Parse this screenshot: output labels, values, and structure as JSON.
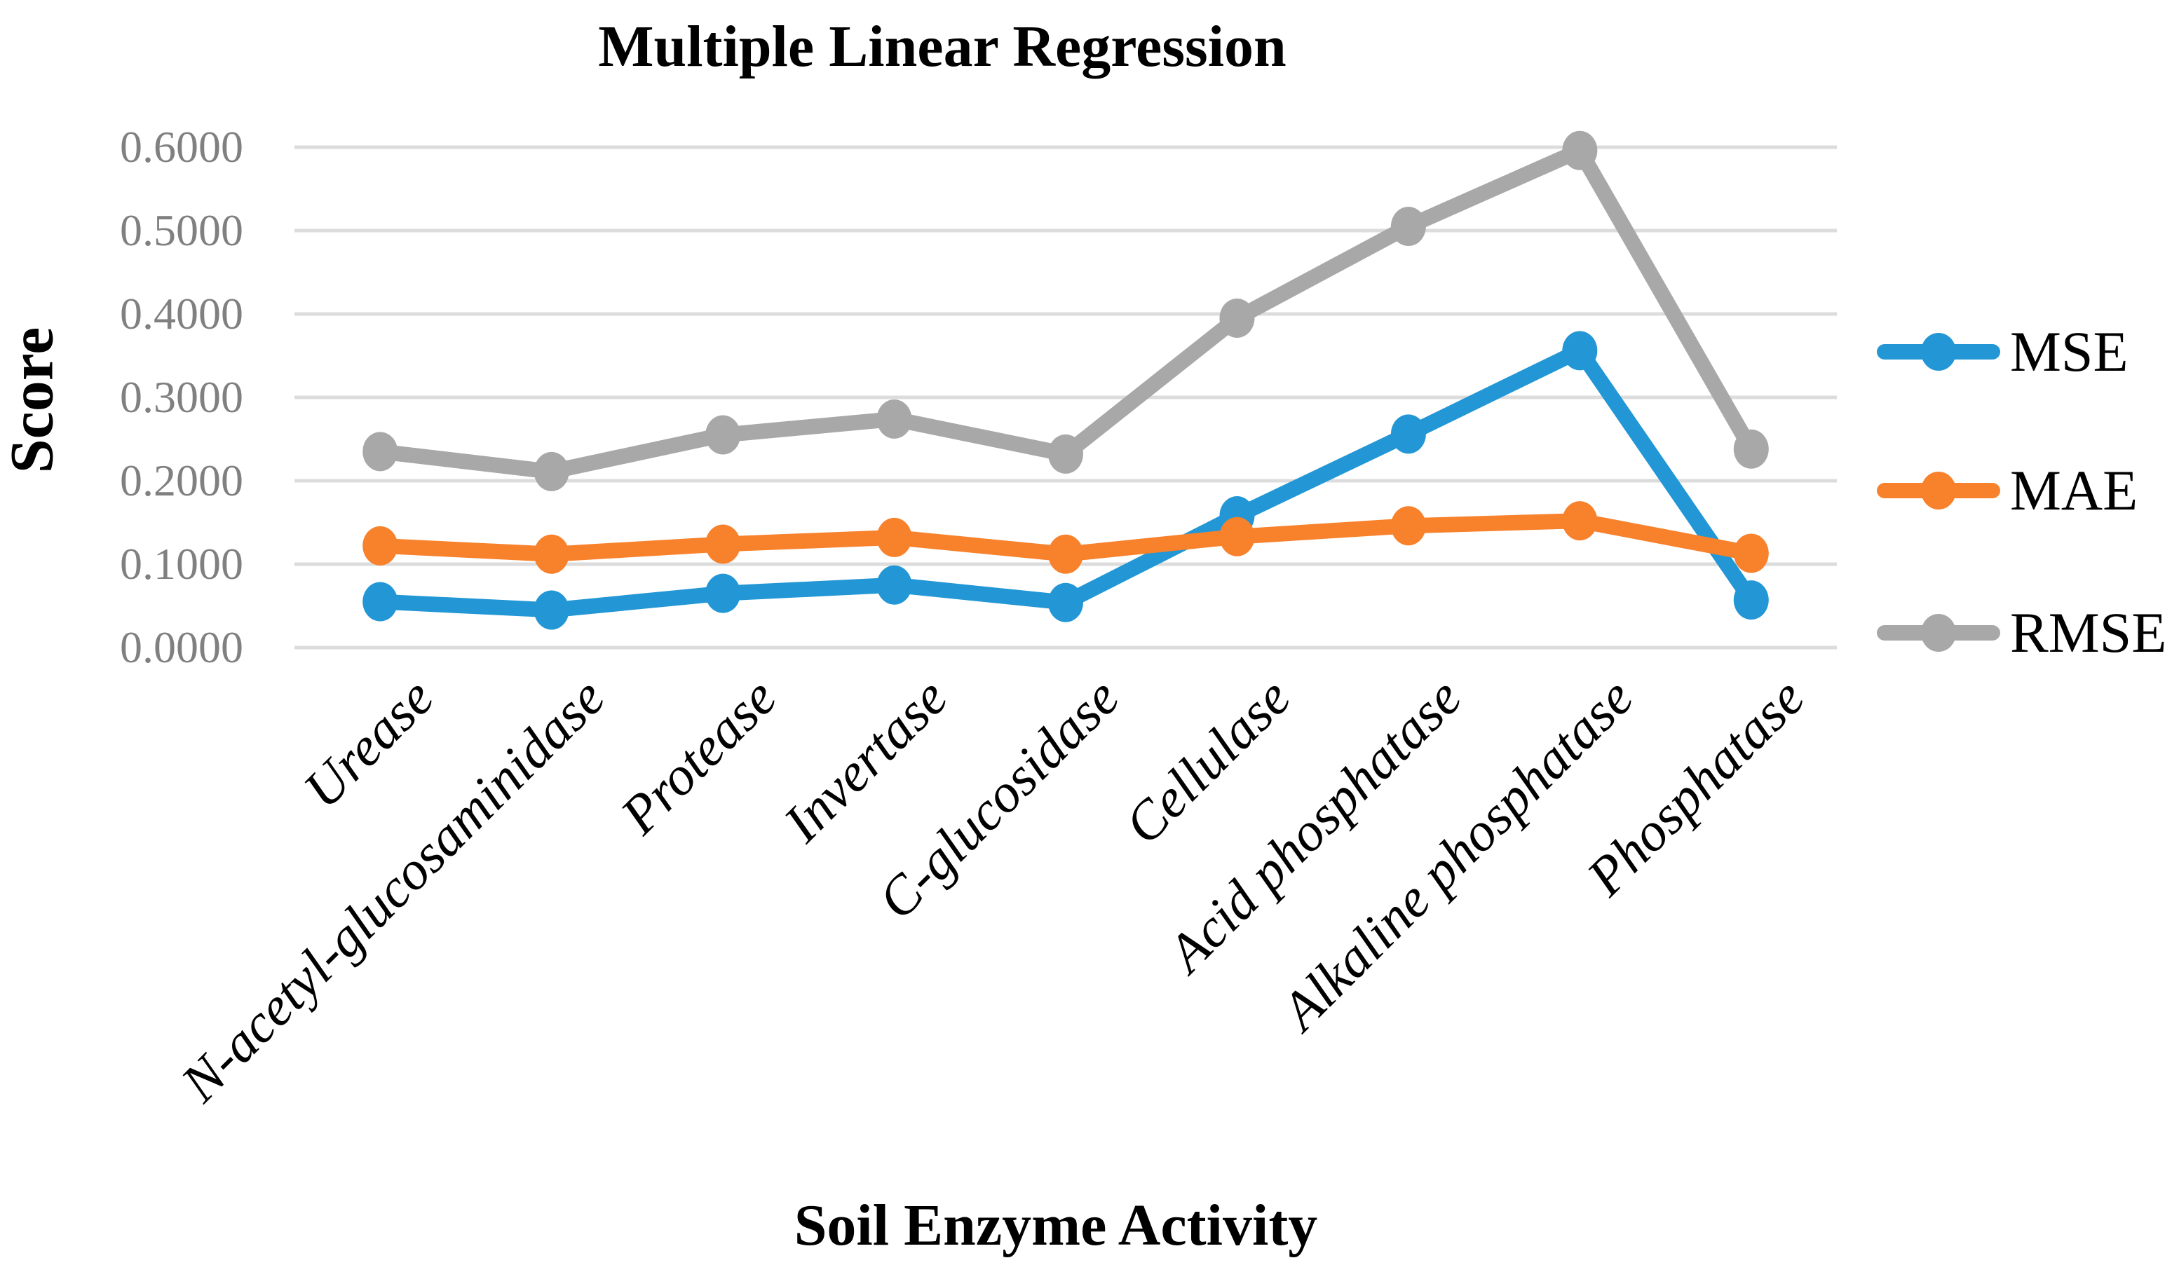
{
  "chart_data": {
    "type": "line",
    "title": "Multiple Linear Regression",
    "xlabel": "Soil Enzyme Activity",
    "ylabel": "Score",
    "categories": [
      "Urease",
      "N-acetyl-glucosaminidase",
      "Protease",
      "Invertase",
      "C-glucosidase",
      "Cellulase",
      "Acid phosphatase",
      "Alkaline phosphatase",
      "Phosphatase"
    ],
    "series": [
      {
        "name": "MSE",
        "color": "#2397D5",
        "values": [
          0.055,
          0.045,
          0.065,
          0.075,
          0.054,
          0.158,
          0.256,
          0.356,
          0.057
        ]
      },
      {
        "name": "MAE",
        "color": "#F8812C",
        "values": [
          0.122,
          0.112,
          0.124,
          0.132,
          0.112,
          0.133,
          0.146,
          0.152,
          0.113
        ]
      },
      {
        "name": "RMSE",
        "color": "#A8A8A8",
        "values": [
          0.235,
          0.211,
          0.255,
          0.274,
          0.232,
          0.395,
          0.505,
          0.596,
          0.238
        ]
      }
    ],
    "yticks": [
      "0.0000",
      "0.1000",
      "0.2000",
      "0.3000",
      "0.4000",
      "0.5000",
      "0.6000"
    ],
    "ylim": [
      0,
      0.6
    ],
    "grid": true,
    "legend_position": "right",
    "colors": {
      "gridline": "#DCDCDC",
      "tick_label": "#808080",
      "background": "#FFFFFF"
    }
  }
}
